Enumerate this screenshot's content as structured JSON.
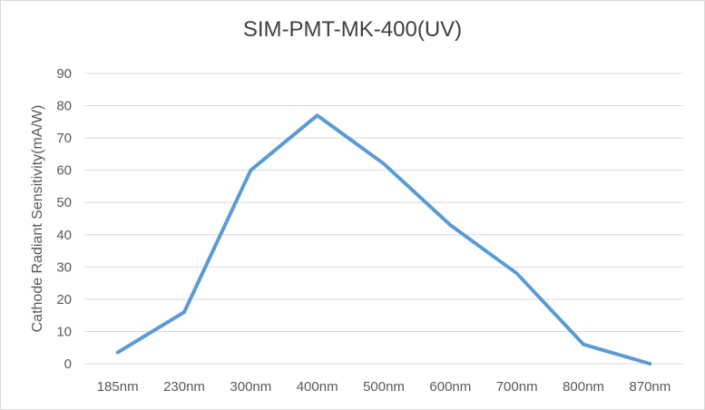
{
  "chart_data": {
    "type": "line",
    "title": "SIM-PMT-MK-400(UV)",
    "xlabel": "",
    "ylabel": "Cathode Radiant Sensitivity(mA/W)",
    "categories": [
      "185nm",
      "230nm",
      "300nm",
      "400nm",
      "500nm",
      "600nm",
      "700nm",
      "800nm",
      "870nm"
    ],
    "series": [
      {
        "values": [
          3.5,
          16,
          60,
          77,
          62,
          43,
          28,
          6,
          0
        ]
      }
    ],
    "ylim": [
      0,
      90
    ],
    "yticks": [
      0,
      10,
      20,
      30,
      40,
      50,
      60,
      70,
      80,
      90
    ],
    "grid": true,
    "legend": "none",
    "line_color": "#5b9bd5",
    "grid_color": "#d9d9d9"
  }
}
